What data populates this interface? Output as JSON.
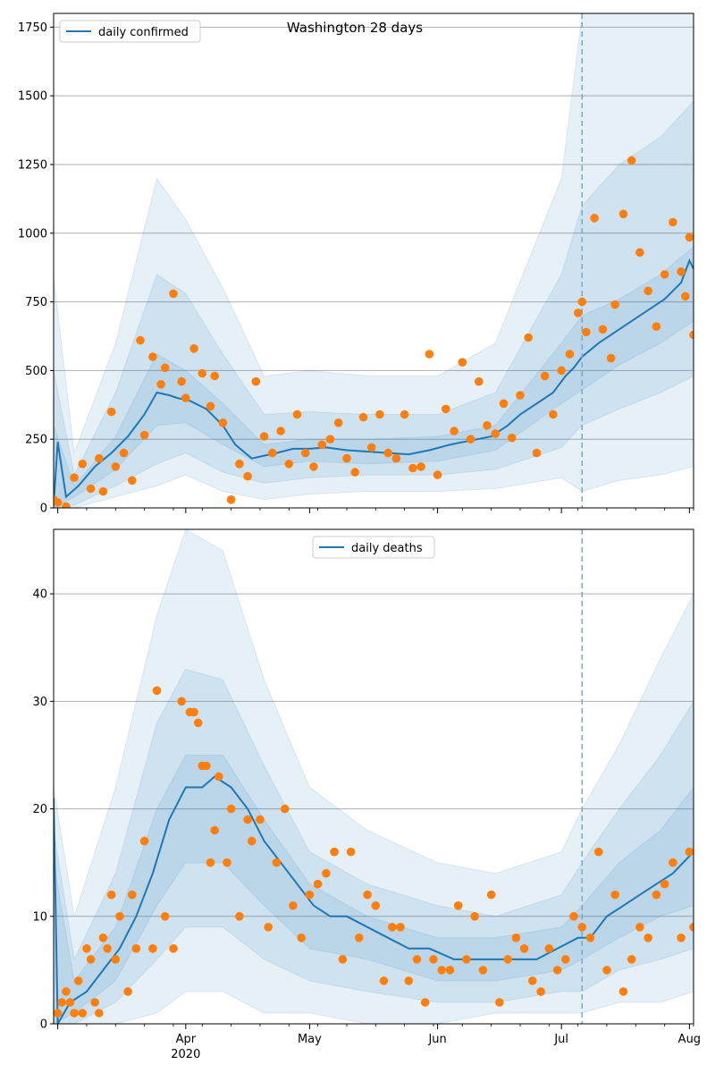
{
  "chart_data": [
    {
      "type": "line",
      "title": "Washington 28 days",
      "legend": {
        "label": "daily confirmed",
        "placement": "top-left"
      },
      "x_range": [
        "2020-02-29",
        "2020-08-02"
      ],
      "ylim": [
        0,
        1800
      ],
      "yticks": [
        0,
        250,
        500,
        750,
        1000,
        1250,
        1500,
        1750
      ],
      "forecast_start": "2020-07-06",
      "grid": "horizontal",
      "colors": {
        "line": "#1f77b4",
        "points": "#ff7f0e",
        "band": "#1f77b4",
        "forecast_line": "#7aa6c8"
      },
      "fit_line": {
        "x": [
          "2020-02-29",
          "2020-03-01",
          "2020-03-03",
          "2020-03-06",
          "2020-03-10",
          "2020-03-14",
          "2020-03-18",
          "2020-03-22",
          "2020-03-25",
          "2020-03-28",
          "2020-03-30",
          "2020-04-02",
          "2020-04-06",
          "2020-04-10",
          "2020-04-13",
          "2020-04-17",
          "2020-04-20",
          "2020-04-23",
          "2020-04-27",
          "2020-05-01",
          "2020-05-05",
          "2020-05-10",
          "2020-05-15",
          "2020-05-20",
          "2020-05-25",
          "2020-05-30",
          "2020-06-04",
          "2020-06-09",
          "2020-06-14",
          "2020-06-18",
          "2020-06-21",
          "2020-06-25",
          "2020-06-29",
          "2020-07-02",
          "2020-07-04",
          "2020-07-06",
          "2020-07-10",
          "2020-07-14",
          "2020-07-18",
          "2020-07-22",
          "2020-07-26",
          "2020-07-30",
          "2020-08-01",
          "2020-08-02"
        ],
        "y": [
          10,
          240,
          40,
          80,
          150,
          200,
          260,
          340,
          420,
          410,
          400,
          390,
          360,
          300,
          230,
          180,
          190,
          200,
          215,
          215,
          220,
          210,
          205,
          200,
          195,
          210,
          230,
          245,
          260,
          300,
          340,
          380,
          420,
          480,
          510,
          550,
          600,
          640,
          680,
          720,
          760,
          820,
          900,
          870
        ]
      },
      "observed": {
        "x": [
          "2020-02-29",
          "2020-03-01",
          "2020-03-03",
          "2020-03-05",
          "2020-03-07",
          "2020-03-09",
          "2020-03-11",
          "2020-03-12",
          "2020-03-14",
          "2020-03-15",
          "2020-03-17",
          "2020-03-19",
          "2020-03-21",
          "2020-03-22",
          "2020-03-24",
          "2020-03-26",
          "2020-03-27",
          "2020-03-29",
          "2020-03-31",
          "2020-04-01",
          "2020-04-03",
          "2020-04-05",
          "2020-04-07",
          "2020-04-08",
          "2020-04-10",
          "2020-04-12",
          "2020-04-14",
          "2020-04-16",
          "2020-04-18",
          "2020-04-20",
          "2020-04-22",
          "2020-04-24",
          "2020-04-26",
          "2020-04-28",
          "2020-04-30",
          "2020-05-02",
          "2020-05-04",
          "2020-05-06",
          "2020-05-08",
          "2020-05-10",
          "2020-05-12",
          "2020-05-14",
          "2020-05-16",
          "2020-05-18",
          "2020-05-20",
          "2020-05-22",
          "2020-05-24",
          "2020-05-26",
          "2020-05-28",
          "2020-05-30",
          "2020-06-01",
          "2020-06-03",
          "2020-06-05",
          "2020-06-07",
          "2020-06-09",
          "2020-06-11",
          "2020-06-13",
          "2020-06-15",
          "2020-06-17",
          "2020-06-19",
          "2020-06-21",
          "2020-06-23",
          "2020-06-25",
          "2020-06-27",
          "2020-06-29",
          "2020-07-01",
          "2020-07-03",
          "2020-07-05",
          "2020-07-06",
          "2020-07-07",
          "2020-07-09",
          "2020-07-11",
          "2020-07-13",
          "2020-07-14",
          "2020-07-16",
          "2020-07-18",
          "2020-07-20",
          "2020-07-22",
          "2020-07-24",
          "2020-07-26",
          "2020-07-28",
          "2020-07-30",
          "2020-07-31",
          "2020-08-01",
          "2020-08-02"
        ],
        "y": [
          30,
          20,
          5,
          110,
          160,
          70,
          180,
          60,
          350,
          150,
          200,
          100,
          610,
          265,
          550,
          450,
          510,
          780,
          460,
          400,
          580,
          490,
          370,
          480,
          310,
          30,
          160,
          115,
          460,
          260,
          200,
          280,
          160,
          340,
          200,
          150,
          230,
          250,
          310,
          180,
          130,
          330,
          220,
          340,
          200,
          180,
          340,
          145,
          150,
          560,
          120,
          360,
          280,
          530,
          250,
          460,
          300,
          270,
          380,
          255,
          410,
          620,
          200,
          480,
          340,
          500,
          560,
          710,
          750,
          640,
          1055,
          650,
          545,
          740,
          1070,
          1265,
          930,
          790,
          660,
          850,
          1040,
          860,
          770,
          985,
          630
        ]
      },
      "bands": [
        {
          "x": [
            "2020-02-29",
            "2020-03-05",
            "2020-03-15",
            "2020-03-25",
            "2020-04-01",
            "2020-04-10",
            "2020-04-20",
            "2020-05-01",
            "2020-05-15",
            "2020-06-01",
            "2020-06-15",
            "2020-07-01",
            "2020-07-06",
            "2020-07-15",
            "2020-07-25",
            "2020-08-02"
          ],
          "lower": [
            0,
            0,
            40,
            80,
            120,
            60,
            30,
            50,
            60,
            60,
            70,
            110,
            60,
            100,
            120,
            150
          ],
          "upper": [
            840,
            200,
            600,
            1200,
            1050,
            800,
            480,
            500,
            480,
            480,
            600,
            1200,
            1800,
            1800,
            1800,
            1800
          ]
        },
        {
          "x": [
            "2020-02-29",
            "2020-03-05",
            "2020-03-15",
            "2020-03-25",
            "2020-04-01",
            "2020-04-10",
            "2020-04-20",
            "2020-05-01",
            "2020-05-15",
            "2020-06-01",
            "2020-06-15",
            "2020-07-01",
            "2020-07-06",
            "2020-07-15",
            "2020-07-25",
            "2020-08-02"
          ],
          "lower": [
            0,
            10,
            80,
            160,
            200,
            130,
            90,
            110,
            120,
            120,
            140,
            220,
            300,
            360,
            420,
            480
          ],
          "upper": [
            500,
            120,
            420,
            850,
            780,
            560,
            340,
            350,
            340,
            340,
            420,
            850,
            1100,
            1250,
            1350,
            1480
          ]
        },
        {
          "x": [
            "2020-02-29",
            "2020-03-05",
            "2020-03-15",
            "2020-03-25",
            "2020-04-01",
            "2020-04-10",
            "2020-04-20",
            "2020-05-01",
            "2020-05-15",
            "2020-06-01",
            "2020-06-15",
            "2020-07-01",
            "2020-07-06",
            "2020-07-15",
            "2020-07-25",
            "2020-08-02"
          ],
          "lower": [
            0,
            40,
            140,
            300,
            310,
            230,
            150,
            170,
            160,
            170,
            210,
            380,
            430,
            520,
            600,
            680
          ],
          "upper": [
            300,
            80,
            260,
            560,
            500,
            380,
            230,
            250,
            250,
            260,
            300,
            600,
            700,
            760,
            850,
            950
          ]
        }
      ]
    },
    {
      "type": "line",
      "title": "",
      "legend": {
        "label": "daily deaths",
        "placement": "top-center"
      },
      "x_range": [
        "2020-02-29",
        "2020-08-02"
      ],
      "ylim": [
        0,
        46
      ],
      "yticks": [
        0,
        10,
        20,
        30,
        40
      ],
      "forecast_start": "2020-07-06",
      "grid": "horizontal",
      "xticks": [
        {
          "date": "2020-04-01",
          "label": "Apr",
          "sublabel": "2020"
        },
        {
          "date": "2020-05-01",
          "label": "May",
          "sublabel": ""
        },
        {
          "date": "2020-06-01",
          "label": "Jun",
          "sublabel": ""
        },
        {
          "date": "2020-07-01",
          "label": "Jul",
          "sublabel": ""
        },
        {
          "date": "2020-08-01",
          "label": "Aug",
          "sublabel": ""
        }
      ],
      "colors": {
        "line": "#1f77b4",
        "points": "#ff7f0e",
        "band": "#1f77b4",
        "forecast_line": "#7aa6c8"
      },
      "fit_line": {
        "x": [
          "2020-02-29",
          "2020-03-01",
          "2020-03-04",
          "2020-03-08",
          "2020-03-12",
          "2020-03-16",
          "2020-03-20",
          "2020-03-24",
          "2020-03-28",
          "2020-04-01",
          "2020-04-05",
          "2020-04-08",
          "2020-04-12",
          "2020-04-16",
          "2020-04-20",
          "2020-04-24",
          "2020-04-28",
          "2020-05-02",
          "2020-05-06",
          "2020-05-10",
          "2020-05-15",
          "2020-05-20",
          "2020-05-25",
          "2020-05-30",
          "2020-06-05",
          "2020-06-10",
          "2020-06-15",
          "2020-06-20",
          "2020-06-25",
          "2020-06-30",
          "2020-07-05",
          "2020-07-08",
          "2020-07-12",
          "2020-07-16",
          "2020-07-20",
          "2020-07-24",
          "2020-07-28",
          "2020-08-02"
        ],
        "y": [
          21,
          0,
          2,
          3,
          5,
          7,
          10,
          14,
          19,
          22,
          22,
          23,
          22,
          20,
          17,
          15,
          13,
          11,
          10,
          10,
          9,
          8,
          7,
          7,
          6,
          6,
          6,
          6,
          6,
          7,
          8,
          8,
          10,
          11,
          12,
          13,
          14,
          16
        ]
      },
      "observed": {
        "x": [
          "2020-03-01",
          "2020-03-02",
          "2020-03-03",
          "2020-03-04",
          "2020-03-05",
          "2020-03-06",
          "2020-03-07",
          "2020-03-08",
          "2020-03-09",
          "2020-03-10",
          "2020-03-11",
          "2020-03-12",
          "2020-03-13",
          "2020-03-14",
          "2020-03-15",
          "2020-03-16",
          "2020-03-18",
          "2020-03-19",
          "2020-03-20",
          "2020-03-22",
          "2020-03-24",
          "2020-03-25",
          "2020-03-27",
          "2020-03-29",
          "2020-03-31",
          "2020-04-02",
          "2020-04-03",
          "2020-04-04",
          "2020-04-05",
          "2020-04-06",
          "2020-04-07",
          "2020-04-08",
          "2020-04-09",
          "2020-04-11",
          "2020-04-12",
          "2020-04-14",
          "2020-04-16",
          "2020-04-17",
          "2020-04-19",
          "2020-04-21",
          "2020-04-23",
          "2020-04-25",
          "2020-04-27",
          "2020-04-29",
          "2020-05-01",
          "2020-05-03",
          "2020-05-05",
          "2020-05-07",
          "2020-05-09",
          "2020-05-11",
          "2020-05-13",
          "2020-05-15",
          "2020-05-17",
          "2020-05-19",
          "2020-05-21",
          "2020-05-23",
          "2020-05-25",
          "2020-05-27",
          "2020-05-29",
          "2020-05-31",
          "2020-06-02",
          "2020-06-04",
          "2020-06-06",
          "2020-06-08",
          "2020-06-10",
          "2020-06-12",
          "2020-06-14",
          "2020-06-16",
          "2020-06-18",
          "2020-06-20",
          "2020-06-22",
          "2020-06-24",
          "2020-06-26",
          "2020-06-28",
          "2020-06-30",
          "2020-07-02",
          "2020-07-04",
          "2020-07-06",
          "2020-07-08",
          "2020-07-10",
          "2020-07-12",
          "2020-07-14",
          "2020-07-16",
          "2020-07-18",
          "2020-07-20",
          "2020-07-22",
          "2020-07-24",
          "2020-07-26",
          "2020-07-28",
          "2020-07-30",
          "2020-08-01",
          "2020-08-02"
        ],
        "y": [
          1,
          2,
          3,
          2,
          1,
          4,
          1,
          7,
          6,
          2,
          1,
          8,
          7,
          12,
          6,
          10,
          3,
          12,
          7,
          17,
          7,
          31,
          10,
          7,
          30,
          29,
          29,
          28,
          24,
          24,
          15,
          18,
          23,
          15,
          20,
          10,
          19,
          17,
          19,
          9,
          15,
          20,
          11,
          8,
          12,
          13,
          14,
          16,
          6,
          16,
          8,
          12,
          11,
          4,
          9,
          9,
          4,
          6,
          2,
          6,
          5,
          5,
          11,
          6,
          10,
          5,
          12,
          2,
          6,
          8,
          7,
          4,
          3,
          7,
          5,
          6,
          10,
          9,
          8,
          16,
          5,
          12,
          3,
          6,
          9,
          8,
          12,
          13,
          15,
          8,
          16,
          9
        ]
      },
      "bands": [
        {
          "x": [
            "2020-02-29",
            "2020-03-05",
            "2020-03-15",
            "2020-03-25",
            "2020-04-01",
            "2020-04-10",
            "2020-04-20",
            "2020-05-01",
            "2020-05-15",
            "2020-06-01",
            "2020-06-15",
            "2020-07-01",
            "2020-07-06",
            "2020-07-15",
            "2020-07-25",
            "2020-08-02"
          ],
          "lower": [
            0,
            0,
            0,
            1,
            3,
            3,
            1,
            1,
            0,
            0,
            1,
            1,
            1,
            2,
            2,
            3
          ],
          "upper": [
            22,
            10,
            22,
            38,
            46,
            44,
            32,
            22,
            18,
            15,
            14,
            16,
            20,
            26,
            34,
            40
          ]
        },
        {
          "x": [
            "2020-02-29",
            "2020-03-05",
            "2020-03-15",
            "2020-03-25",
            "2020-04-01",
            "2020-04-10",
            "2020-04-20",
            "2020-05-01",
            "2020-05-15",
            "2020-06-01",
            "2020-06-15",
            "2020-07-01",
            "2020-07-06",
            "2020-07-15",
            "2020-07-25",
            "2020-08-02"
          ],
          "lower": [
            0,
            0,
            2,
            6,
            9,
            9,
            6,
            4,
            3,
            2,
            2,
            3,
            3,
            5,
            6,
            7
          ],
          "upper": [
            18,
            6,
            14,
            28,
            33,
            32,
            24,
            16,
            13,
            11,
            10,
            12,
            15,
            20,
            25,
            30
          ]
        },
        {
          "x": [
            "2020-02-29",
            "2020-03-05",
            "2020-03-15",
            "2020-03-25",
            "2020-04-01",
            "2020-04-10",
            "2020-04-20",
            "2020-05-01",
            "2020-05-15",
            "2020-06-01",
            "2020-06-15",
            "2020-07-01",
            "2020-07-06",
            "2020-07-15",
            "2020-07-25",
            "2020-08-02"
          ],
          "lower": [
            0,
            1,
            4,
            11,
            15,
            15,
            11,
            7,
            6,
            4,
            4,
            5,
            6,
            8,
            10,
            11
          ],
          "upper": [
            15,
            4,
            9,
            20,
            25,
            25,
            19,
            13,
            10,
            8,
            8,
            9,
            11,
            15,
            18,
            22
          ]
        }
      ]
    }
  ]
}
